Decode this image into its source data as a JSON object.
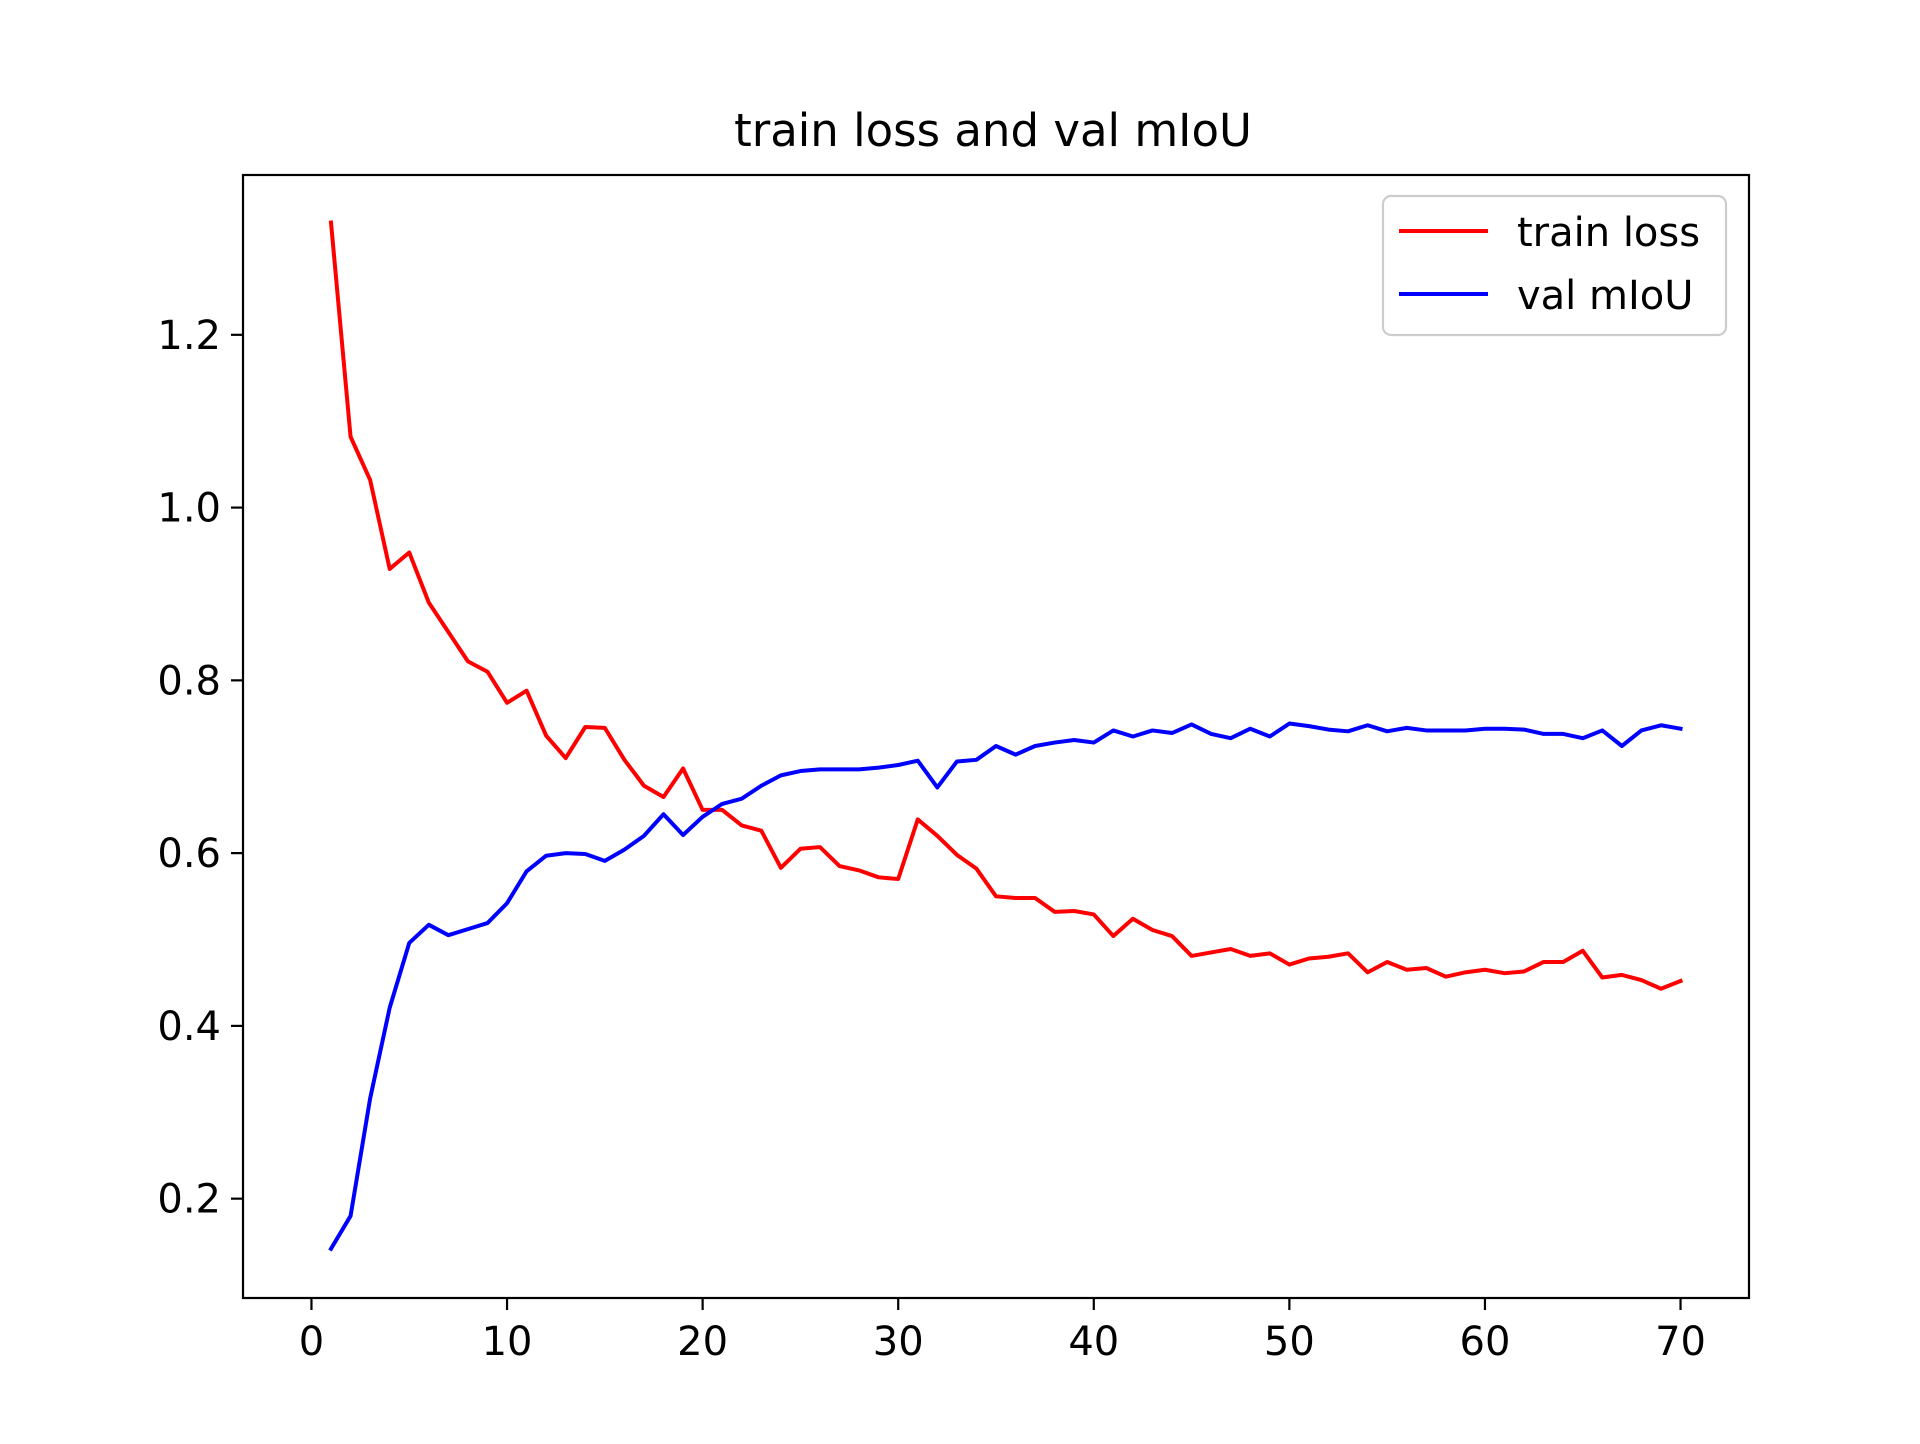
{
  "chart_data": {
    "type": "line",
    "title": "train loss and val mIoU",
    "xlabel": "",
    "ylabel": "",
    "xlim": [
      -3.5,
      73.5
    ],
    "ylim": [
      0.085,
      1.385
    ],
    "x_ticks": [
      0,
      10,
      20,
      30,
      40,
      50,
      60,
      70
    ],
    "x_tick_labels": [
      "0",
      "10",
      "20",
      "30",
      "40",
      "50",
      "60",
      "70"
    ],
    "y_ticks": [
      0.2,
      0.4,
      0.6,
      0.8,
      1.0,
      1.2
    ],
    "y_tick_labels": [
      "0.2",
      "0.4",
      "0.6",
      "0.8",
      "1.0",
      "1.2"
    ],
    "grid": false,
    "legend_position": "top-right",
    "x": [
      1,
      2,
      3,
      4,
      5,
      6,
      7,
      8,
      9,
      10,
      11,
      12,
      13,
      14,
      15,
      16,
      17,
      18,
      19,
      20,
      21,
      22,
      23,
      24,
      25,
      26,
      27,
      28,
      29,
      30,
      31,
      32,
      33,
      34,
      35,
      36,
      37,
      38,
      39,
      40,
      41,
      42,
      43,
      44,
      45,
      46,
      47,
      48,
      49,
      50,
      51,
      52,
      53,
      54,
      55,
      56,
      57,
      58,
      59,
      60,
      61,
      62,
      63,
      64,
      65,
      66,
      67,
      68,
      69,
      70
    ],
    "series": [
      {
        "name": "train loss",
        "color": "#ff0000",
        "values": [
          1.33,
          1.082,
          1.032,
          0.929,
          0.948,
          0.89,
          0.856,
          0.822,
          0.81,
          0.774,
          0.788,
          0.736,
          0.71,
          0.746,
          0.745,
          0.708,
          0.678,
          0.665,
          0.698,
          0.65,
          0.65,
          0.632,
          0.626,
          0.583,
          0.605,
          0.607,
          0.585,
          0.58,
          0.572,
          0.57,
          0.639,
          0.62,
          0.598,
          0.582,
          0.55,
          0.548,
          0.548,
          0.532,
          0.533,
          0.529,
          0.504,
          0.524,
          0.511,
          0.504,
          0.481,
          0.485,
          0.489,
          0.481,
          0.484,
          0.471,
          0.478,
          0.48,
          0.484,
          0.462,
          0.474,
          0.465,
          0.467,
          0.457,
          0.462,
          0.465,
          0.461,
          0.463,
          0.474,
          0.474,
          0.487,
          0.456,
          0.459,
          0.453,
          0.443,
          0.452
        ]
      },
      {
        "name": "val mIoU",
        "color": "#0000ff",
        "values": [
          0.142,
          0.18,
          0.316,
          0.421,
          0.496,
          0.517,
          0.505,
          0.512,
          0.519,
          0.542,
          0.579,
          0.597,
          0.6,
          0.599,
          0.591,
          0.604,
          0.62,
          0.645,
          0.621,
          0.642,
          0.657,
          0.663,
          0.678,
          0.69,
          0.695,
          0.697,
          0.697,
          0.697,
          0.699,
          0.702,
          0.707,
          0.676,
          0.706,
          0.708,
          0.724,
          0.714,
          0.724,
          0.728,
          0.731,
          0.728,
          0.742,
          0.735,
          0.742,
          0.739,
          0.749,
          0.738,
          0.733,
          0.744,
          0.735,
          0.75,
          0.747,
          0.743,
          0.741,
          0.748,
          0.741,
          0.745,
          0.742,
          0.742,
          0.742,
          0.744,
          0.744,
          0.743,
          0.738,
          0.738,
          0.733,
          0.742,
          0.724,
          0.742,
          0.748,
          0.744
        ]
      }
    ]
  }
}
